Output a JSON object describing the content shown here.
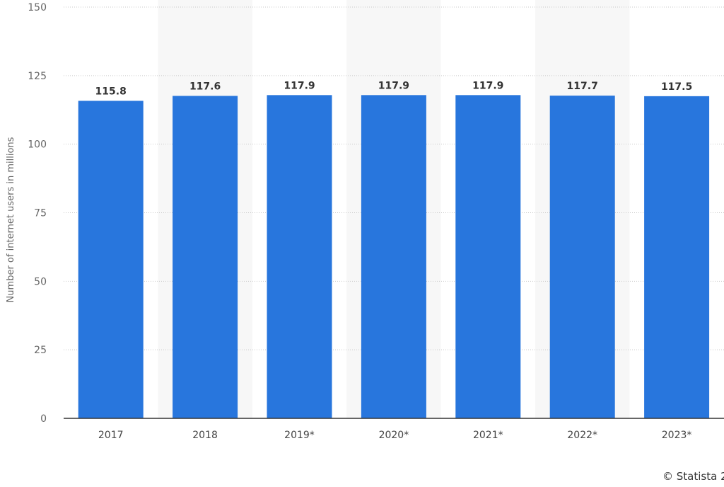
{
  "chart_data": {
    "type": "bar",
    "categories": [
      "2017",
      "2018",
      "2019*",
      "2020*",
      "2021*",
      "2022*",
      "2023*"
    ],
    "values": [
      115.8,
      117.6,
      117.9,
      117.9,
      117.9,
      117.7,
      117.5
    ],
    "data_labels": [
      "115.8",
      "117.6",
      "117.9",
      "117.9",
      "117.9",
      "117.7",
      "117.5"
    ],
    "ylabel": "Number of internet users in millions",
    "ylim": [
      0,
      150
    ],
    "yticks": [
      0,
      25,
      50,
      75,
      100,
      125,
      150
    ],
    "grid": true,
    "bar_color": "#2876dd"
  },
  "footer": {
    "copyright": "© Statista 2"
  }
}
